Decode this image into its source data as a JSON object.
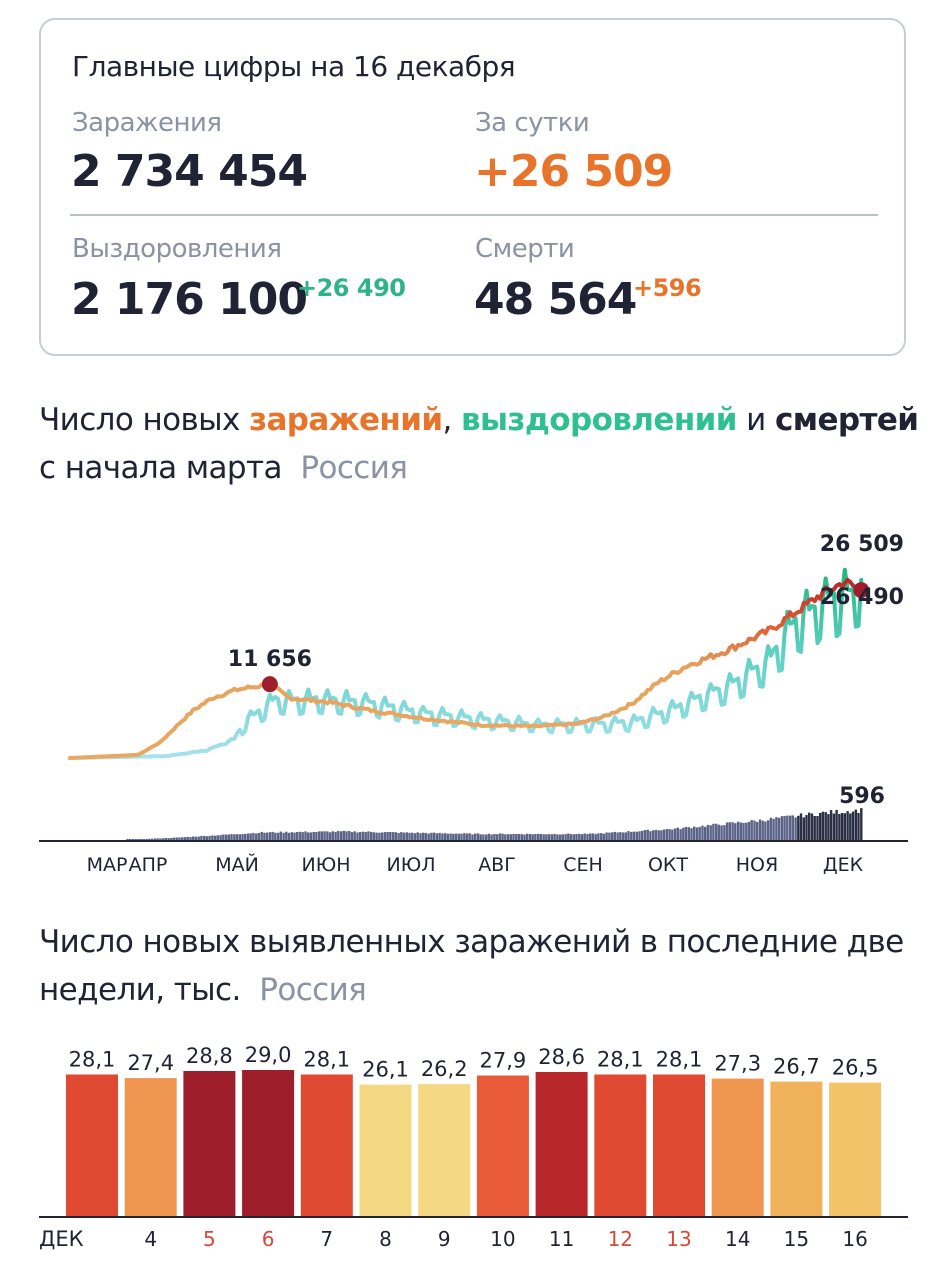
{
  "summary": {
    "title": "Главные цифры на 16 декабря",
    "infections_label": "Заражения",
    "infections_value": "2 734 454",
    "daily_label": "За сутки",
    "daily_value": "+26 509",
    "recoveries_label": "Выздоровления",
    "recoveries_value": "2 176 100",
    "recoveries_delta": "+26 490",
    "deaths_label": "Смерти",
    "deaths_value": "48 564",
    "deaths_delta": "+596"
  },
  "colors": {
    "infections": "#e8742c",
    "recoveries": "#2fc08f",
    "deaths": "#1f2333",
    "muted": "#8a93a3"
  },
  "chart1_title": {
    "prefix": "Число новых ",
    "infections_word": "заражений",
    "comma": ",",
    "recoveries_word": "выздоровлений",
    "and": " и ",
    "deaths_word": "смертей",
    "line2": "с начала марта",
    "region": "Россия"
  },
  "chart2_title": {
    "line1": "Число новых выявленных заражений в последние две",
    "line2": "недели, тыс.",
    "region": "Россия"
  },
  "chart_data": [
    {
      "type": "line",
      "title": "Число новых заражений, выздоровлений и смертей с начала марта",
      "x_unit": "day since 1 March",
      "x_tick_labels": [
        "МАР",
        "АПР",
        "МАЙ",
        "ИЮН",
        "ИЮЛ",
        "АВГ",
        "СЕН",
        "ОКТ",
        "НОЯ",
        "ДЕК"
      ],
      "x_tick_days": [
        0,
        31,
        61,
        92,
        122,
        153,
        184,
        214,
        245,
        275
      ],
      "xlim": [
        0,
        290
      ],
      "ylim": [
        0,
        30000
      ],
      "series": [
        {
          "name": "заражения",
          "keypoints_day_value": [
            [
              0,
              0
            ],
            [
              25,
              500
            ],
            [
              33,
              2500
            ],
            [
              40,
              5500
            ],
            [
              45,
              7500
            ],
            [
              52,
              9500
            ],
            [
              61,
              10800
            ],
            [
              73,
              11656
            ],
            [
              80,
              9500
            ],
            [
              95,
              8800
            ],
            [
              110,
              7500
            ],
            [
              130,
              6200
            ],
            [
              150,
              5200
            ],
            [
              170,
              5000
            ],
            [
              185,
              5400
            ],
            [
              195,
              6500
            ],
            [
              205,
              8500
            ],
            [
              215,
              12000
            ],
            [
              225,
              14500
            ],
            [
              240,
              17000
            ],
            [
              255,
              20000
            ],
            [
              265,
              23000
            ],
            [
              275,
              26000
            ],
            [
              283,
              27800
            ],
            [
              289,
              26509
            ]
          ],
          "annotations": [
            {
              "day": 73,
              "value": 11656,
              "label": "11 656"
            },
            {
              "day": 289,
              "value": 26509,
              "label": "26 509"
            }
          ]
        },
        {
          "name": "выздоровления",
          "keypoints_day_value": [
            [
              0,
              0
            ],
            [
              35,
              300
            ],
            [
              50,
              1200
            ],
            [
              60,
              3000
            ],
            [
              65,
              6000
            ],
            [
              75,
              9000
            ],
            [
              95,
              9000
            ],
            [
              110,
              8500
            ],
            [
              130,
              6800
            ],
            [
              150,
              6000
            ],
            [
              170,
              5200
            ],
            [
              190,
              5200
            ],
            [
              205,
              5500
            ],
            [
              220,
              7500
            ],
            [
              240,
              11000
            ],
            [
              255,
              15000
            ],
            [
              265,
              21000
            ],
            [
              275,
              24000
            ],
            [
              285,
              25000
            ],
            [
              289,
              26490
            ]
          ],
          "weekly_amplitude_fraction": 0.3,
          "annotations": [
            {
              "day": 289,
              "value": 26490,
              "label": "26 490"
            }
          ]
        },
        {
          "name": "смерти",
          "type": "bar",
          "keypoints_day_value": [
            [
              0,
              0
            ],
            [
              21,
              5
            ],
            [
              40,
              50
            ],
            [
              70,
              150
            ],
            [
              100,
              170
            ],
            [
              150,
              120
            ],
            [
              190,
              120
            ],
            [
              220,
              220
            ],
            [
              250,
              380
            ],
            [
              275,
              540
            ],
            [
              289,
              596
            ]
          ],
          "annotations": [
            {
              "day": 289,
              "value": 596,
              "label": "596"
            }
          ]
        }
      ]
    },
    {
      "type": "bar",
      "title": "Число новых выявленных заражений в последние две недели, тыс.",
      "categories": [
        "",
        "4",
        "5",
        "6",
        "7",
        "8",
        "9",
        "10",
        "11",
        "12",
        "13",
        "14",
        "15",
        "16"
      ],
      "first_label": "ДЕК",
      "values": [
        28.1,
        27.4,
        28.8,
        29.0,
        28.1,
        26.1,
        26.2,
        27.9,
        28.6,
        28.1,
        28.1,
        27.3,
        26.7,
        26.5
      ],
      "value_labels": [
        "28,1",
        "27,4",
        "28,8",
        "29,0",
        "28,1",
        "26,1",
        "26,2",
        "27,9",
        "28,6",
        "28,1",
        "28,1",
        "27,3",
        "26,7",
        "26,5"
      ],
      "weekend": [
        false,
        false,
        true,
        true,
        false,
        false,
        false,
        false,
        false,
        true,
        true,
        false,
        false,
        false
      ],
      "bar_colors": [
        "#e04a33",
        "#ee9550",
        "#9e1f2b",
        "#9e1f2b",
        "#e04a33",
        "#f5d884",
        "#f5d884",
        "#e85a38",
        "#b8282b",
        "#e04a33",
        "#e04a33",
        "#ee9550",
        "#f0b35c",
        "#f3c36a"
      ],
      "weekend_label_color": "#d9483a",
      "ylim": [
        0,
        29.0
      ]
    }
  ]
}
